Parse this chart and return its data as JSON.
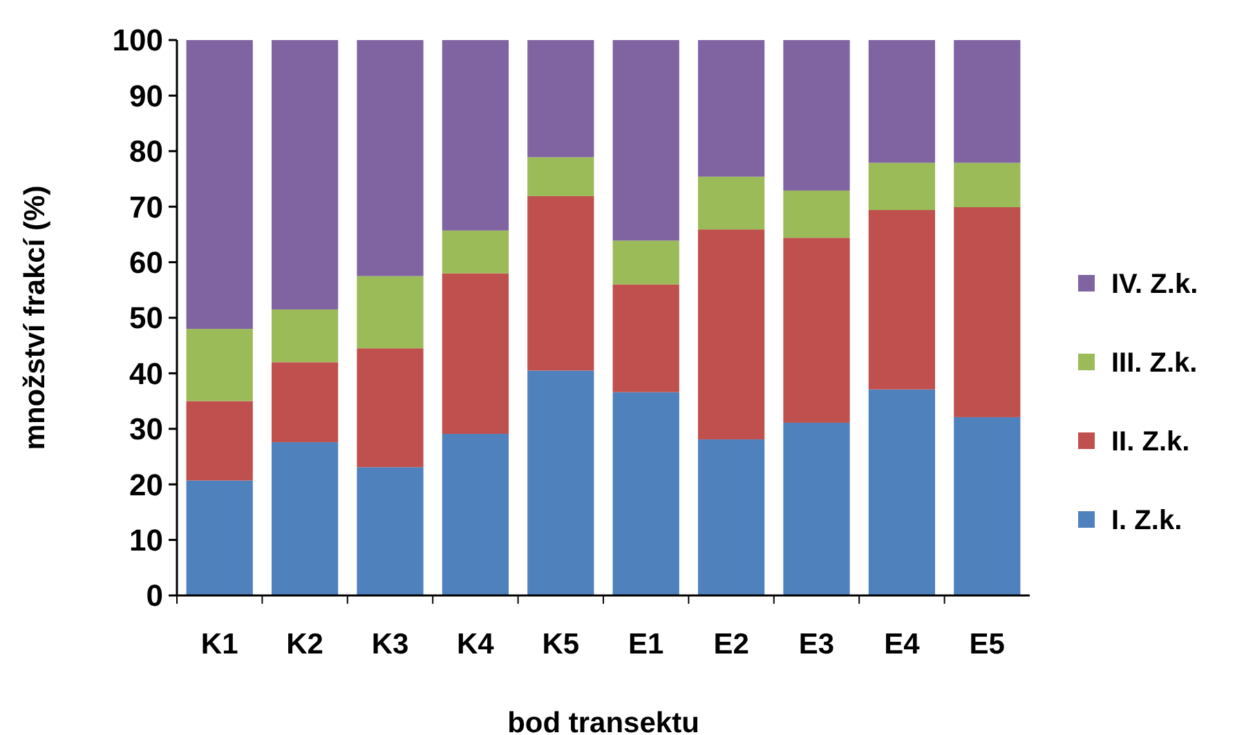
{
  "chart_data": {
    "type": "bar",
    "stacked": true,
    "xlabel": "bod transektu",
    "ylabel": "množství frakcí (%)",
    "categories": [
      "K1",
      "K2",
      "K3",
      "K4",
      "K5",
      "E1",
      "E2",
      "E3",
      "E4",
      "E5"
    ],
    "series": [
      {
        "name": "I. Z.k.",
        "color": "#4f81bd",
        "values": [
          20.7,
          27.6,
          23.1,
          29.1,
          40.5,
          36.6,
          28.1,
          31.1,
          37.1,
          32.1
        ]
      },
      {
        "name": "II. Z.k.",
        "color": "#c0504d",
        "values": [
          14.3,
          14.4,
          21.4,
          28.9,
          31.4,
          19.4,
          37.8,
          33.3,
          32.3,
          37.8
        ]
      },
      {
        "name": "III. Z.k.",
        "color": "#9bbb59",
        "values": [
          13,
          9.5,
          13,
          7.7,
          7,
          7.9,
          9.5,
          8.5,
          8.5,
          8
        ]
      },
      {
        "name": "IV. Z.k.",
        "color": "#8064a2",
        "values": [
          52,
          48.5,
          42.5,
          34.3,
          21.1,
          36.1,
          24.6,
          27.1,
          22.1,
          22.1
        ]
      }
    ],
    "ylim": [
      0,
      100
    ],
    "yticks": [
      0,
      10,
      20,
      30,
      40,
      50,
      60,
      70,
      80,
      90,
      100
    ],
    "grid": false,
    "legend": "right"
  }
}
